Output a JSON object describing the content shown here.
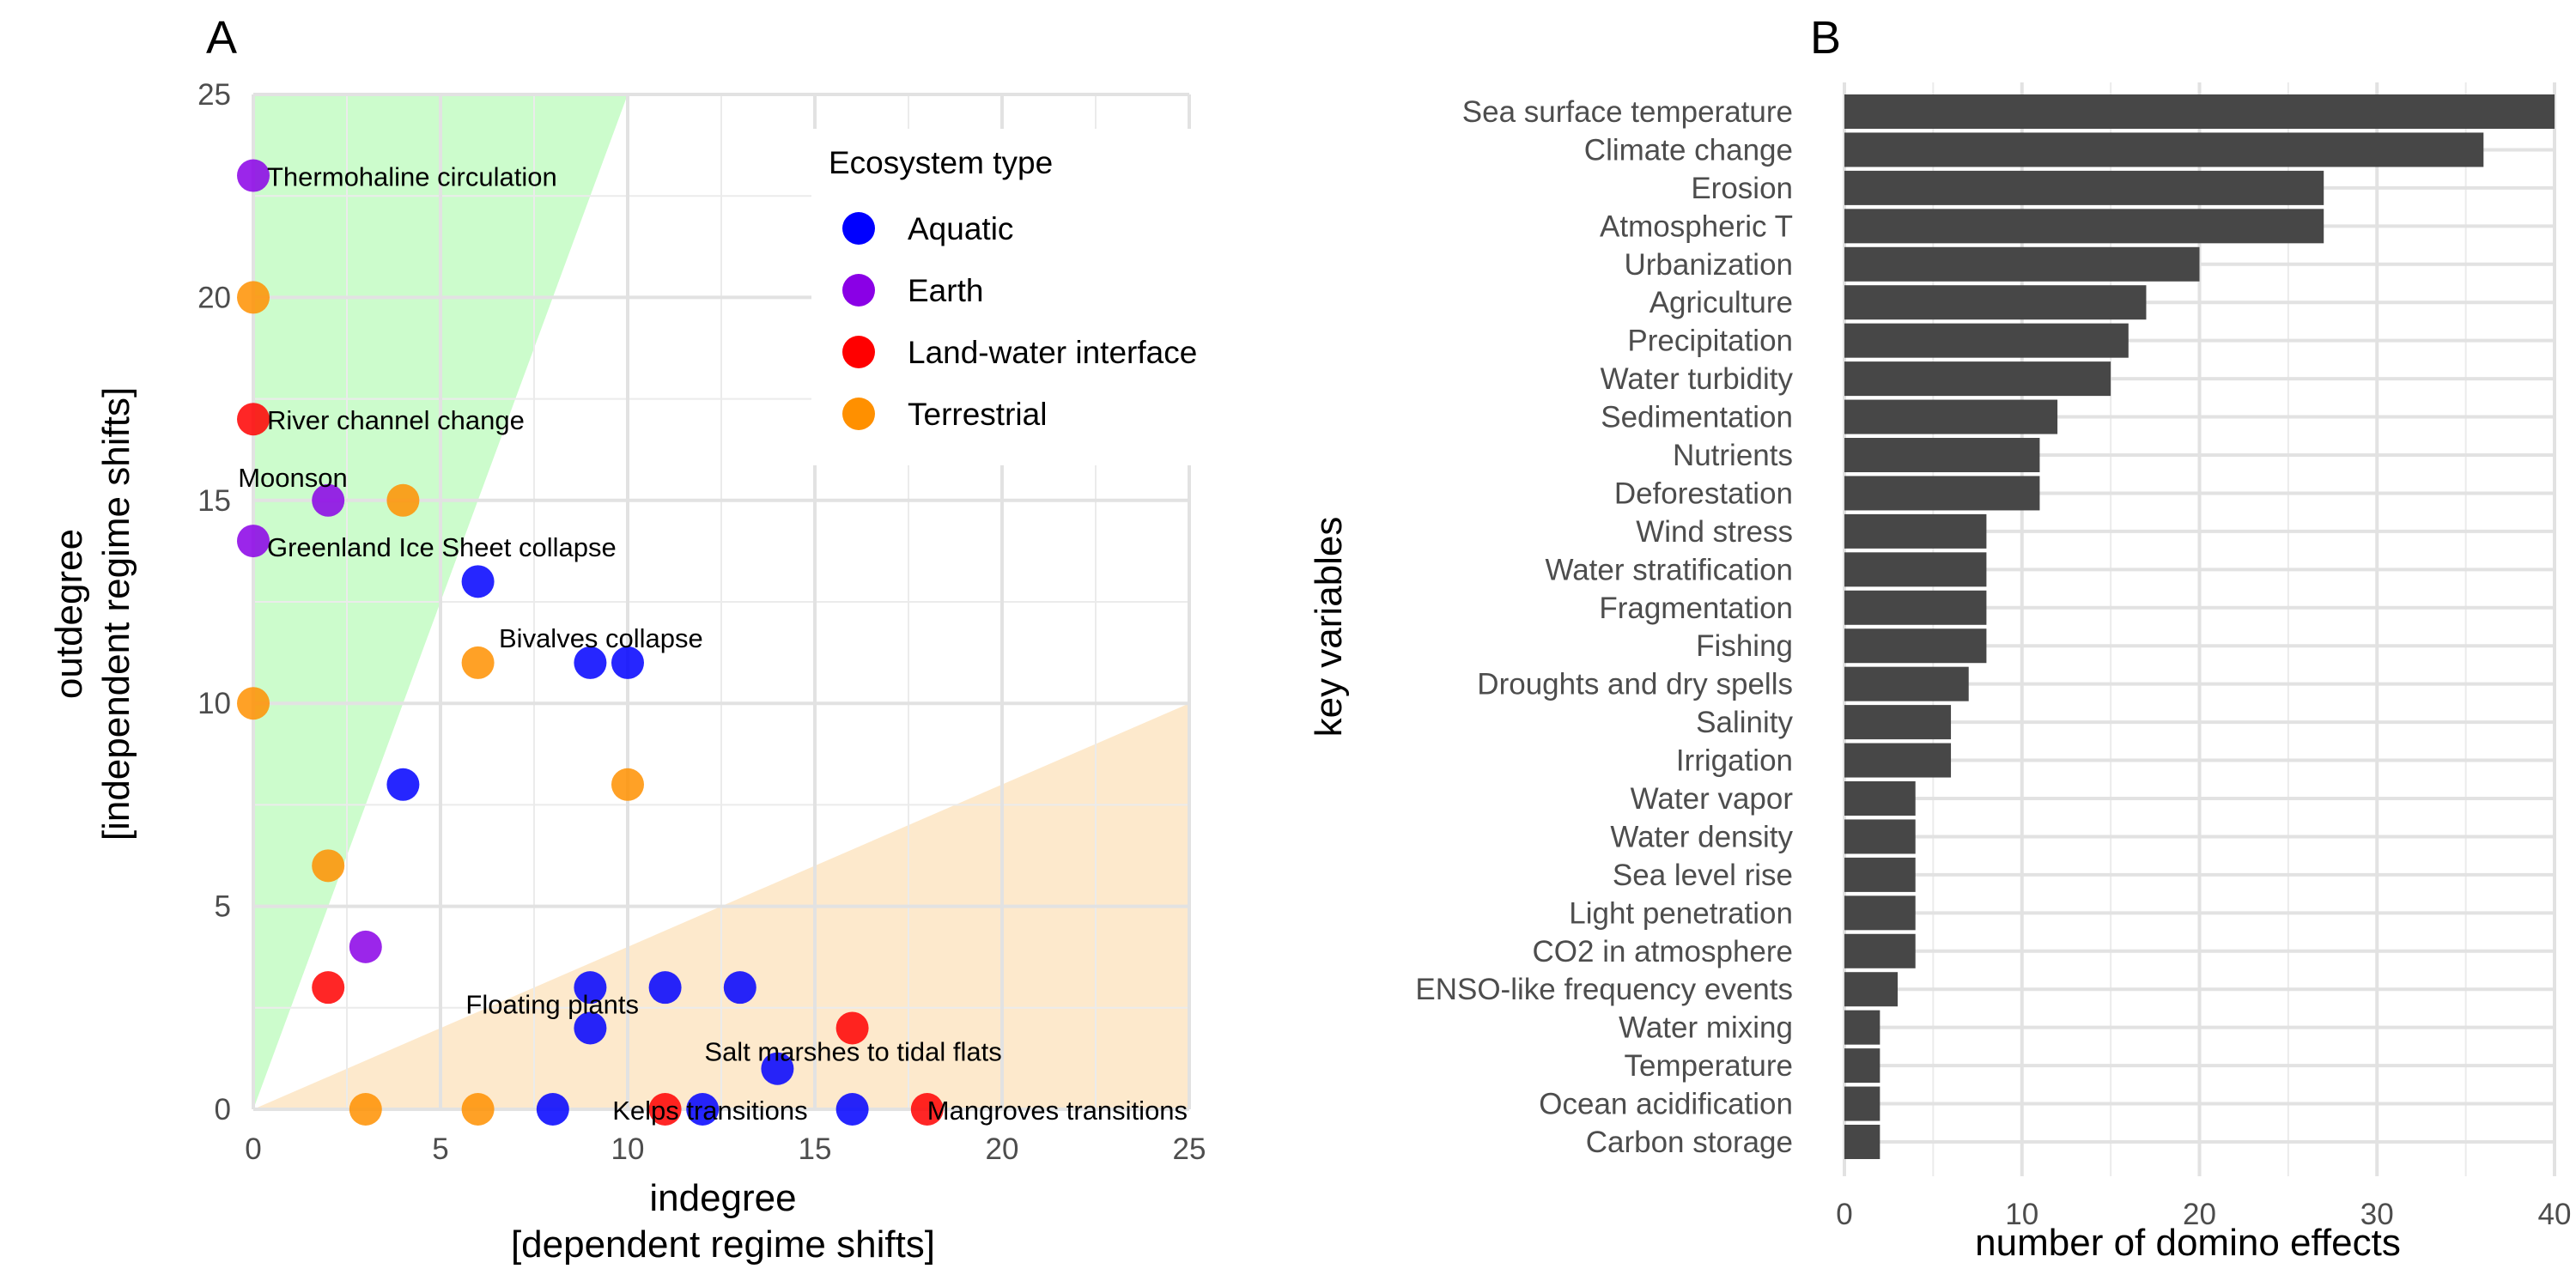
{
  "panels": {
    "a_label": "A",
    "b_label": "B"
  },
  "chart_data": [
    {
      "type": "scatter",
      "xlabel": "indegree",
      "xlabel2": "[dependent regime shifts]",
      "ylabel": "outdegree",
      "ylabel2": "[independent regime shifts]",
      "xlim": [
        0,
        25
      ],
      "ylim": [
        0,
        25
      ],
      "xticks": [
        0,
        5,
        10,
        15,
        20,
        25
      ],
      "yticks": [
        0,
        5,
        10,
        15,
        20,
        25
      ],
      "grid": true,
      "shaded_regions": [
        {
          "name": "independent",
          "color": "#ccfccc",
          "polygon": [
            [
              0,
              0
            ],
            [
              0,
              25
            ],
            [
              10,
              25
            ]
          ]
        },
        {
          "name": "dependent",
          "color": "#fde9cc",
          "polygon": [
            [
              0,
              0
            ],
            [
              25,
              0
            ],
            [
              25,
              10
            ]
          ]
        }
      ],
      "legend": {
        "title": "Ecosystem type",
        "position": "top-right",
        "entries": [
          {
            "label": "Aquatic",
            "color": "#0000ff"
          },
          {
            "label": "Earth",
            "color": "#8a00e6"
          },
          {
            "label": "Land-water interface",
            "color": "#ff0000"
          },
          {
            "label": "Terrestrial",
            "color": "#ff9000"
          }
        ]
      },
      "points": [
        {
          "x": 0,
          "y": 23,
          "type": "Earth",
          "label": "Thermohaline circulation"
        },
        {
          "x": 0,
          "y": 20,
          "type": "Terrestrial",
          "label": ""
        },
        {
          "x": 0,
          "y": 17,
          "type": "Land-water interface",
          "label": "River channel change"
        },
        {
          "x": 2,
          "y": 15,
          "type": "Earth",
          "label": "Moonson"
        },
        {
          "x": 4,
          "y": 15,
          "type": "Terrestrial",
          "label": ""
        },
        {
          "x": 0,
          "y": 14,
          "type": "Earth",
          "label": "Greenland Ice Sheet collapse"
        },
        {
          "x": 6,
          "y": 13,
          "type": "Aquatic",
          "label": ""
        },
        {
          "x": 6,
          "y": 11,
          "type": "Terrestrial",
          "label": ""
        },
        {
          "x": 9,
          "y": 11,
          "type": "Aquatic",
          "label": ""
        },
        {
          "x": 10,
          "y": 11,
          "type": "Aquatic",
          "label": "Bivalves collapse"
        },
        {
          "x": 0,
          "y": 10,
          "type": "Terrestrial",
          "label": ""
        },
        {
          "x": 4,
          "y": 8,
          "type": "Aquatic",
          "label": ""
        },
        {
          "x": 10,
          "y": 8,
          "type": "Terrestrial",
          "label": ""
        },
        {
          "x": 2,
          "y": 6,
          "type": "Terrestrial",
          "label": ""
        },
        {
          "x": 3,
          "y": 4,
          "type": "Earth",
          "label": ""
        },
        {
          "x": 2,
          "y": 3,
          "type": "Land-water interface",
          "label": ""
        },
        {
          "x": 9,
          "y": 3,
          "type": "Aquatic",
          "label": ""
        },
        {
          "x": 11,
          "y": 3,
          "type": "Aquatic",
          "label": ""
        },
        {
          "x": 13,
          "y": 3,
          "type": "Aquatic",
          "label": ""
        },
        {
          "x": 9,
          "y": 2,
          "type": "Aquatic",
          "label": "Floating plants"
        },
        {
          "x": 16,
          "y": 2,
          "type": "Land-water interface",
          "label": ""
        },
        {
          "x": 14,
          "y": 1,
          "type": "Aquatic",
          "label": "Salt marshes to tidal flats"
        },
        {
          "x": 3,
          "y": 0,
          "type": "Terrestrial",
          "label": ""
        },
        {
          "x": 6,
          "y": 0,
          "type": "Terrestrial",
          "label": ""
        },
        {
          "x": 8,
          "y": 0,
          "type": "Aquatic",
          "label": ""
        },
        {
          "x": 11,
          "y": 0,
          "type": "Land-water interface",
          "label": ""
        },
        {
          "x": 12,
          "y": 0,
          "type": "Aquatic",
          "label": "Kelps transitions"
        },
        {
          "x": 16,
          "y": 0,
          "type": "Aquatic",
          "label": ""
        },
        {
          "x": 18,
          "y": 0,
          "type": "Land-water interface",
          "label": "Mangroves transitions"
        }
      ]
    },
    {
      "type": "bar",
      "orientation": "horizontal",
      "xlabel": "number of domino effects",
      "ylabel": "key variables",
      "xlim": [
        0,
        40
      ],
      "xticks": [
        0,
        10,
        20,
        30,
        40
      ],
      "grid": true,
      "bar_color": "#474747",
      "categories": [
        "Sea surface temperature",
        "Climate change",
        "Erosion",
        "Atmospheric T",
        "Urbanization",
        "Agriculture",
        "Precipitation",
        "Water turbidity",
        "Sedimentation",
        "Nutrients",
        "Deforestation",
        "Wind stress",
        "Water stratification",
        "Fragmentation",
        "Fishing",
        "Droughts and dry spells",
        "Salinity",
        "Irrigation",
        "Water vapor",
        "Water density",
        "Sea level rise",
        "Light penetration",
        "CO2 in atmosphere",
        "ENSO-like frequency events",
        "Water mixing",
        "Temperature",
        "Ocean acidification",
        "Carbon storage"
      ],
      "values": [
        40,
        36,
        27,
        27,
        20,
        17,
        16,
        15,
        12,
        11,
        11,
        8,
        8,
        8,
        8,
        7,
        6,
        6,
        4,
        4,
        4,
        4,
        4,
        3,
        2,
        2,
        2,
        2
      ]
    }
  ]
}
